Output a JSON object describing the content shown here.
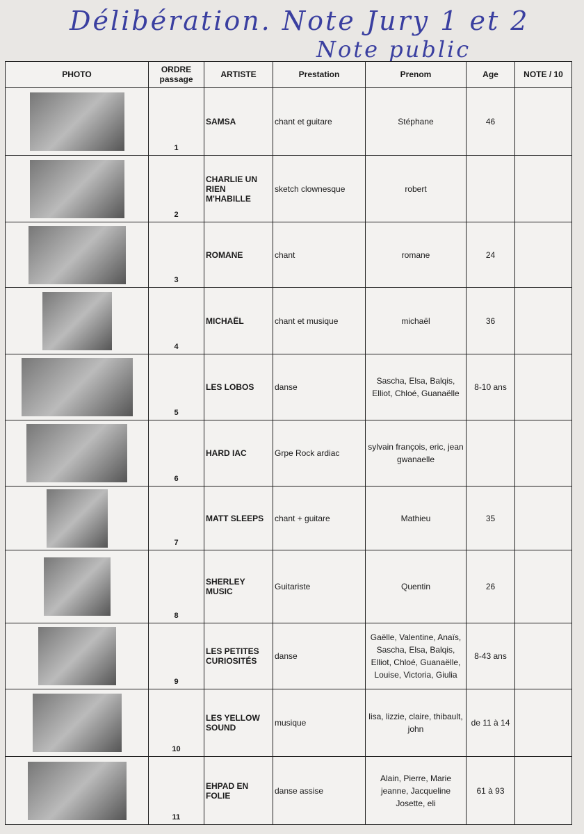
{
  "handwritten": {
    "line1": "Délibération. Note Jury 1 et 2",
    "line2": "Note public"
  },
  "headers": {
    "photo": "PHOTO",
    "ordre": "ORDRE passage",
    "artiste": "ARTISTE",
    "prestation": "Prestation",
    "prenom": "Prenom",
    "age": "Age",
    "note": "NOTE / 10"
  },
  "rows": [
    {
      "ordre": "1",
      "artiste": "SAMSA",
      "prestation": "chant et guitare",
      "prenom": "Stéphane",
      "age": "46",
      "note": ""
    },
    {
      "ordre": "2",
      "artiste": "CHARLIE UN RIEN M'HABILLE",
      "prestation": "sketch clownesque",
      "prenom": "robert",
      "age": "",
      "note": ""
    },
    {
      "ordre": "3",
      "artiste": "ROMANE",
      "prestation": "chant",
      "prenom": "romane",
      "age": "24",
      "note": ""
    },
    {
      "ordre": "4",
      "artiste": "MICHAËL",
      "prestation": "chant et musique",
      "prenom": "michaël",
      "age": "36",
      "note": ""
    },
    {
      "ordre": "5",
      "artiste": "LES LOBOS",
      "prestation": "danse",
      "prenom": "Sascha, Elsa, Balqis, Elliot, Chloé, Guanaëlle",
      "age": "8-10 ans",
      "note": ""
    },
    {
      "ordre": "6",
      "artiste": "HARD IAC",
      "prestation": "Grpe Rock ardiac",
      "prenom": "sylvain françois, eric, jean gwanaelle",
      "age": "",
      "note": ""
    },
    {
      "ordre": "7",
      "artiste": "MATT SLEEPS",
      "prestation": "chant + guitare",
      "prenom": "Mathieu",
      "age": "35",
      "note": ""
    },
    {
      "ordre": "8",
      "artiste": "SHERLEY MUSIC",
      "prestation": "Guitariste",
      "prenom": "Quentin",
      "age": "26",
      "note": ""
    },
    {
      "ordre": "9",
      "artiste": "LES PETITES CURIOSITÉS",
      "prestation": "danse",
      "prenom": "Gaëlle, Valentine, Anaïs, Sascha, Elsa, Balqis, Elliot, Chloé, Guanaëlle, Louise, Victoria, Giulia",
      "age": "8-43 ans",
      "note": ""
    },
    {
      "ordre": "10",
      "artiste": "LES YELLOW SOUND",
      "prestation": "musique",
      "prenom": "lisa, lizzie, claire, thibault, john",
      "age": "de 11 à 14",
      "note": ""
    },
    {
      "ordre": "11",
      "artiste": "EHPAD EN FOLIE",
      "prestation": "danse assise",
      "prenom": "Alain, Pierre, Marie jeanne, Jacqueline Josette, eli",
      "age": "61 à 93",
      "note": ""
    }
  ]
}
